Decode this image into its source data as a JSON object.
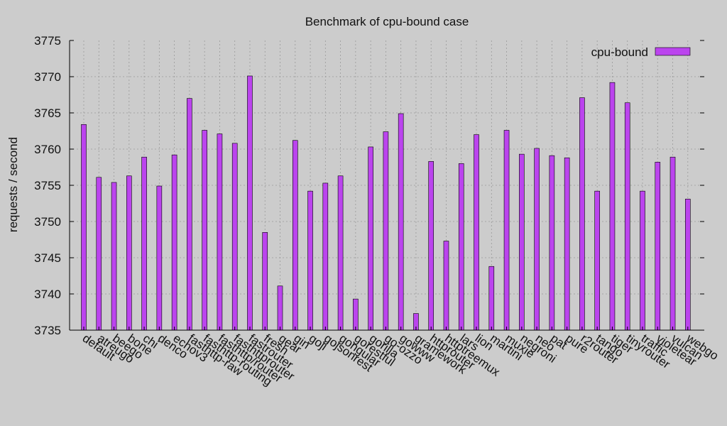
{
  "chart_data": {
    "type": "bar",
    "title": "Benchmark of cpu-bound case",
    "xlabel": "",
    "ylabel": "requests / second",
    "ylim": [
      3735,
      3775
    ],
    "yticks": [
      3735,
      3740,
      3745,
      3750,
      3755,
      3760,
      3765,
      3770,
      3775
    ],
    "grid": true,
    "legend_position": "top-right",
    "categories": [
      "default",
      "atreugo",
      "beego",
      "bone",
      "chi",
      "denco",
      "echov3",
      "fasthttp-raw",
      "fasthttp-routing",
      "fasthttp/router",
      "fasthttprouter",
      "fastrouter",
      "fresh",
      "gear",
      "gin",
      "goji",
      "gojsonrest",
      "gongular",
      "gorestful",
      "gorilla",
      "go-ozzo",
      "gowww",
      "gramework",
      "httprouter",
      "httptreemux",
      "lars",
      "lion",
      "martini",
      "muxie",
      "negroni",
      "neo",
      "pat",
      "pure",
      "r2router",
      "tango",
      "tiger",
      "tinyrouter",
      "traffic",
      "violetear",
      "vulcan",
      "webgo"
    ],
    "series": [
      {
        "name": "cpu-bound",
        "color": "#bb44ee",
        "values": [
          3763.4,
          3756.1,
          3755.4,
          3756.3,
          3758.9,
          3754.9,
          3759.2,
          3767.0,
          3762.6,
          3762.1,
          3760.8,
          3770.1,
          3748.5,
          3741.1,
          3761.2,
          3754.2,
          3755.3,
          3756.3,
          3739.3,
          3760.3,
          3762.4,
          3764.9,
          3737.3,
          3758.3,
          3747.3,
          3758.0,
          3762.0,
          3743.8,
          3762.6,
          3759.3,
          3760.1,
          3759.1,
          3758.8,
          3767.1,
          3754.2,
          3769.2,
          3766.4,
          3754.2,
          3758.2,
          3758.9,
          3753.1
        ]
      }
    ]
  }
}
